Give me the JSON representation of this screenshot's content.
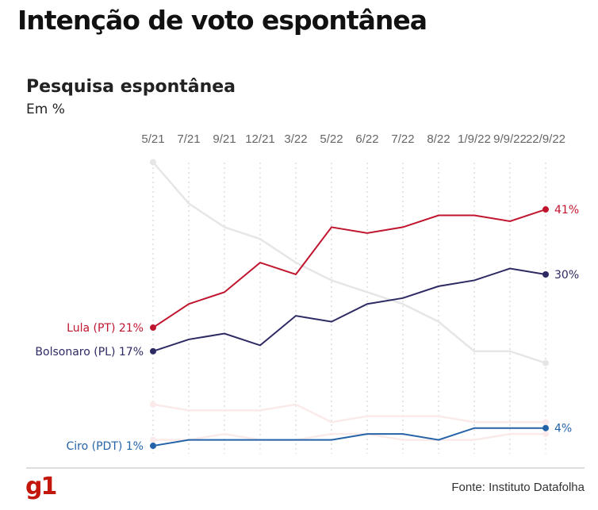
{
  "header": {
    "title": "Intenção de voto espontânea"
  },
  "footer": {
    "logo": "g1",
    "source": "Fonte: Instituto Datafolha"
  },
  "chart_data": {
    "type": "line",
    "title": "Pesquisa espontânea",
    "ylabel": "Em %",
    "ylim": [
      0,
      50
    ],
    "grid": "vertical dashed",
    "categories": [
      "5/21",
      "7/21",
      "9/21",
      "12/21",
      "3/22",
      "5/22",
      "6/22",
      "7/22",
      "8/22",
      "1/9/22",
      "9/9/22",
      "22/9/22"
    ],
    "series": [
      {
        "name": "Lula (PT)",
        "color": "#c0152f",
        "start_label": "Lula (PT) 21%",
        "end_label": "41%",
        "values": [
          21,
          25,
          27,
          32,
          30,
          38,
          37,
          38,
          40,
          40,
          39,
          41
        ]
      },
      {
        "name": "Bolsonaro (PL)",
        "color": "#2d2a63",
        "start_label": "Bolsonaro (PL) 17%",
        "end_label": "30%",
        "values": [
          17,
          19,
          20,
          18,
          23,
          22,
          25,
          26,
          28,
          29,
          31,
          30
        ]
      },
      {
        "name": "Ciro (PDT)",
        "color": "#2563a8",
        "start_label": "Ciro (PDT) 1%",
        "end_label": "4%",
        "values": [
          1,
          2,
          2,
          2,
          2,
          2,
          3,
          3,
          2,
          4,
          4,
          4
        ]
      },
      {
        "color": "#e6e6e6",
        "values": [
          49,
          42,
          38,
          36,
          32,
          29,
          27,
          25,
          22,
          17,
          17,
          15
        ]
      },
      {
        "color": "#fbeaea",
        "values": [
          8,
          7,
          7,
          7,
          8,
          5,
          6,
          6,
          6,
          5,
          5,
          5
        ]
      },
      {
        "color": "#fbeaea",
        "values": [
          2,
          2,
          3,
          2,
          2,
          3,
          3,
          2,
          2,
          2,
          3,
          3
        ]
      }
    ]
  }
}
